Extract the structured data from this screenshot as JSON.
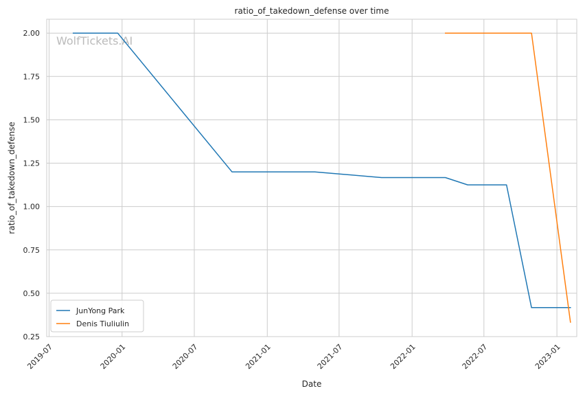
{
  "chart_data": {
    "type": "line",
    "title": "ratio_of_takedown_defense over time",
    "xlabel": "Date",
    "ylabel": "ratio_of_takedown_defense",
    "watermark": "WolfTickets.AI",
    "x_ticks": [
      "2019-07",
      "2020-01",
      "2020-07",
      "2021-01",
      "2021-07",
      "2022-01",
      "2022-07",
      "2023-01"
    ],
    "y_ticks": [
      "0.25",
      "0.50",
      "0.75",
      "1.00",
      "1.25",
      "1.50",
      "1.75",
      "2.00"
    ],
    "xlim": [
      "2019-06-25",
      "2023-02-20"
    ],
    "ylim": [
      0.25,
      2.08
    ],
    "grid": true,
    "legend_position": "lower-left",
    "series": [
      {
        "name": "JunYong Park",
        "color": "#1f77b4",
        "points": [
          [
            "2019-08-31",
            2.0
          ],
          [
            "2019-12-21",
            2.0
          ],
          [
            "2020-10-04",
            1.2
          ],
          [
            "2021-05-01",
            1.2
          ],
          [
            "2021-10-16",
            1.167
          ],
          [
            "2022-03-26",
            1.167
          ],
          [
            "2022-05-21",
            1.125
          ],
          [
            "2022-08-27",
            1.125
          ],
          [
            "2022-10-29",
            0.417
          ],
          [
            "2023-02-04",
            0.417
          ]
        ]
      },
      {
        "name": "Denis Tiuliulin",
        "color": "#ff7f0e",
        "points": [
          [
            "2022-03-26",
            2.0
          ],
          [
            "2022-10-29",
            2.0
          ],
          [
            "2023-02-04",
            0.333
          ]
        ]
      }
    ]
  }
}
